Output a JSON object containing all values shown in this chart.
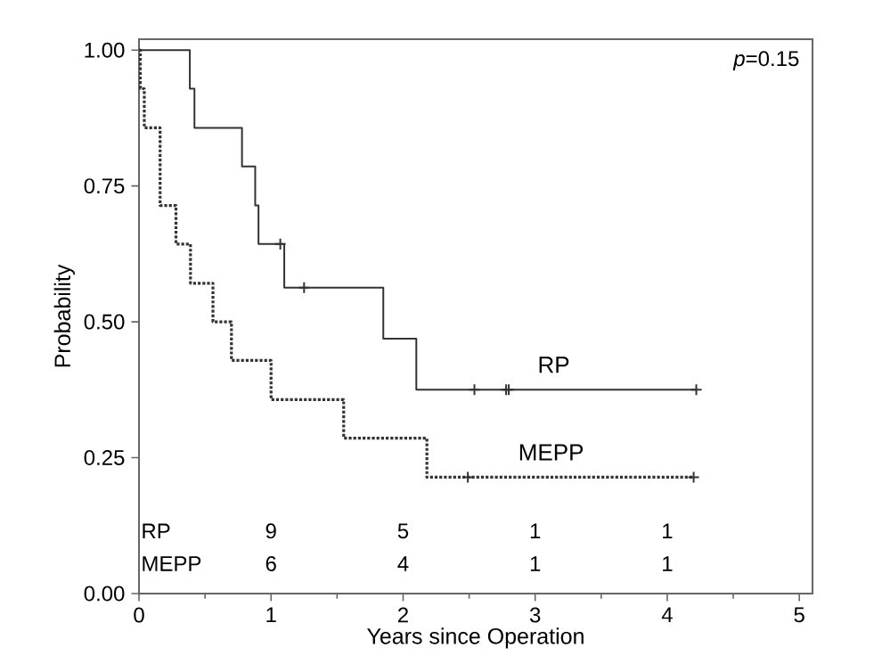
{
  "chart_data": {
    "type": "step",
    "xlabel": "Years since Operation",
    "ylabel": "Probability",
    "xlim": [
      0,
      5.1
    ],
    "ylim": [
      0,
      1.02
    ],
    "xticks": [
      0,
      1,
      2,
      3,
      4,
      5
    ],
    "yticks": [
      {
        "value": 0,
        "label": "0.00"
      },
      {
        "value": 0.25,
        "label": "0.25"
      },
      {
        "value": 0.5,
        "label": "0.50"
      },
      {
        "value": 0.75,
        "label": "0.75"
      },
      {
        "value": 1,
        "label": "1.00"
      }
    ],
    "legend": false,
    "series": [
      {
        "name": "RP",
        "color": "#333333",
        "line_style": "solid",
        "marker": "none",
        "x": [
          0,
          0.385,
          0.42,
          0.78,
          0.88,
          0.905,
          1.1,
          1.85,
          2.1,
          4.22
        ],
        "values": [
          1,
          0.929,
          0.857,
          0.786,
          0.714,
          0.643,
          0.563,
          0.469,
          0.375,
          0.375
        ]
      },
      {
        "name": "MEPP",
        "color": "#333333",
        "line_style": "dotted",
        "marker": "none",
        "x": [
          0,
          0.01,
          0.04,
          0.16,
          0.28,
          0.39,
          0.56,
          0.7,
          1.0,
          1.55,
          2.18,
          4.2
        ],
        "values": [
          1,
          0.929,
          0.857,
          0.714,
          0.643,
          0.571,
          0.5,
          0.429,
          0.357,
          0.286,
          0.214,
          0.214
        ]
      },
      {
        "type": "scatter",
        "color": "#333333",
        "marker": "cross",
        "x": [
          1.07,
          1.25,
          2.54,
          2.78,
          2.8,
          4.22
        ],
        "values": [
          0.643,
          0.563,
          0.375,
          0.375,
          0.375,
          0.375
        ]
      },
      {
        "type": "scatter",
        "color": "#333333",
        "marker": "cross",
        "x": [
          2.49,
          4.2
        ],
        "values": [
          0.214,
          0.214
        ]
      }
    ],
    "annotations": [
      "*p*=0.15",
      "RP",
      "9",
      "5",
      "1",
      "1",
      "MEPP",
      "6",
      "4",
      "1",
      "1"
    ]
  }
}
